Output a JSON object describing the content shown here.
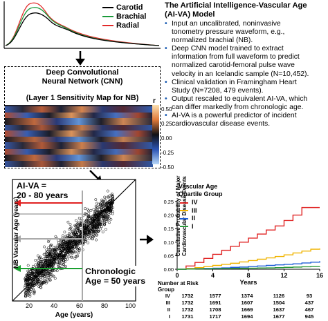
{
  "waveform": {
    "legend": [
      {
        "label": "Carotid",
        "color": "#000000"
      },
      {
        "label": "Brachial",
        "color": "#1a9a3a"
      },
      {
        "label": "Radial",
        "color": "#e22a2a"
      }
    ]
  },
  "cnn": {
    "title_line1": "Deep Convolutional",
    "title_line2": "Neural Network (CNN)",
    "sensitivity_label": "(Layer 1 Sensitivity Map for NB)",
    "colorbar": {
      "title": "r",
      "ticks": [
        "0.50",
        "0.25",
        "0.00",
        "-0.25",
        "-0.50"
      ]
    }
  },
  "model_text": {
    "title_line1": "The Artificial Intelligence-Vascular Age",
    "title_line2": "(AI-VA) Model",
    "bullets": [
      [
        "Input an uncalibrated, noninvasive",
        "tonometry pressure waveform, e.g.,",
        "normalized brachial (NB)."
      ],
      [
        "Deep CNN model trained to extract",
        "information from full waveform to predict",
        "normalized carotid-femoral pulse wave",
        "velocity in an Icelandic sample (N=10,452)."
      ],
      [
        "Clinical validation in Framingham Heart",
        "Study (N=7208, 479 events)."
      ],
      [
        "Output rescaled to equivalent AI-VA, which",
        "can differ markedly from chronologic age."
      ],
      [
        "AI-VA is a powerful predictor of incident",
        "cardiovascular disease events."
      ]
    ]
  },
  "scatter": {
    "ylabel": "NB Vascular Age (years)",
    "xlabel": "Age (years)",
    "ticks": [
      "20",
      "40",
      "60",
      "80",
      "100"
    ],
    "aiva_line1": "AI-VA =",
    "aiva_line2": "20 - 80 years",
    "chrono_line1": "Chronologic",
    "chrono_line2": "Age = 50 years"
  },
  "chart_data": {
    "type": "line",
    "title": "",
    "xlabel": "Years",
    "ylabel": "Cumulative Probability of Major Cardiovascular Disease Events",
    "xlim": [
      0,
      16
    ],
    "ylim": [
      0,
      0.25
    ],
    "xticks": [
      "0",
      "4",
      "8",
      "12",
      "16"
    ],
    "yticks": [
      "0.00",
      "0.05",
      "0.10",
      "0.15",
      "0.20",
      "0.25"
    ],
    "legend_title_line1": "Vascular Age",
    "legend_title_line2": "Quartile Group",
    "legend_position": "top-left",
    "series": [
      {
        "name": "IV",
        "color": "#e02424",
        "x": [
          0,
          1,
          2,
          3,
          4,
          5,
          6,
          7,
          8,
          9,
          10,
          11,
          12,
          13,
          14,
          15,
          16
        ],
        "y": [
          0,
          0.012,
          0.025,
          0.04,
          0.055,
          0.07,
          0.085,
          0.1,
          0.115,
          0.13,
          0.145,
          0.16,
          0.18,
          0.2,
          0.228,
          0.228,
          0.228
        ]
      },
      {
        "name": "III",
        "color": "#f0b400",
        "x": [
          0,
          1,
          2,
          3,
          4,
          5,
          6,
          7,
          8,
          9,
          10,
          11,
          12,
          13,
          14,
          15,
          16
        ],
        "y": [
          0,
          0.003,
          0.006,
          0.01,
          0.014,
          0.018,
          0.022,
          0.027,
          0.032,
          0.037,
          0.042,
          0.047,
          0.053,
          0.06,
          0.067,
          0.074,
          0.077
        ]
      },
      {
        "name": "II",
        "color": "#1f5fd6",
        "x": [
          0,
          1,
          2,
          3,
          4,
          5,
          6,
          7,
          8,
          9,
          10,
          11,
          12,
          13,
          14,
          15,
          16
        ],
        "y": [
          0,
          0.001,
          0.002,
          0.003,
          0.004,
          0.005,
          0.007,
          0.008,
          0.01,
          0.012,
          0.014,
          0.016,
          0.018,
          0.02,
          0.023,
          0.026,
          0.03
        ]
      },
      {
        "name": "I",
        "color": "#2a9a3a",
        "x": [
          0,
          1,
          2,
          3,
          4,
          5,
          6,
          7,
          8,
          9,
          10,
          11,
          12,
          13,
          14,
          15,
          16
        ],
        "y": [
          0,
          0.0005,
          0.001,
          0.0015,
          0.002,
          0.0025,
          0.003,
          0.0035,
          0.004,
          0.0045,
          0.005,
          0.006,
          0.007,
          0.008,
          0.009,
          0.01,
          0.011
        ]
      }
    ],
    "risk_table": {
      "header_line1": "Number at Risk",
      "header_line2": "Group",
      "rows": [
        {
          "group": "IV",
          "values": [
            "1732",
            "1577",
            "1374",
            "1126",
            "93"
          ]
        },
        {
          "group": "III",
          "values": [
            "1732",
            "1691",
            "1607",
            "1504",
            "437"
          ]
        },
        {
          "group": "II",
          "values": [
            "1732",
            "1708",
            "1669",
            "1637",
            "467"
          ]
        },
        {
          "group": "I",
          "values": [
            "1731",
            "1717",
            "1694",
            "1677",
            "945"
          ]
        }
      ]
    }
  }
}
